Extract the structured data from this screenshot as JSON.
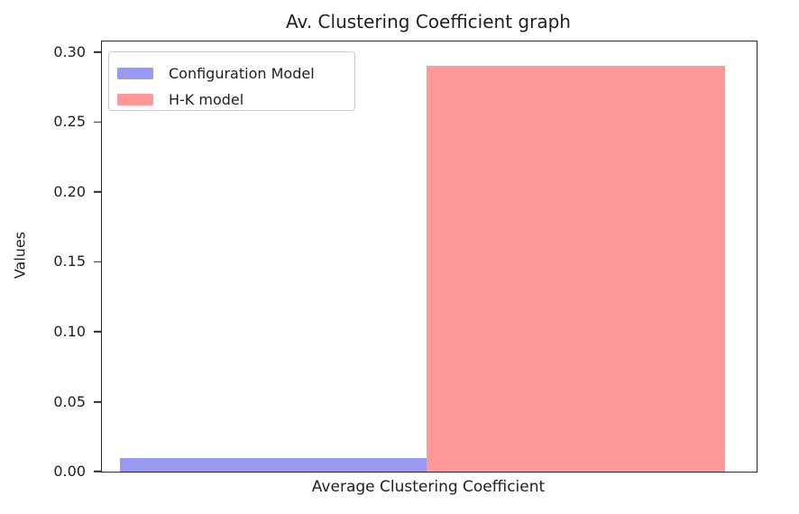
{
  "figure": {
    "background": "#ffffff",
    "spine_color": "#2a2a2a",
    "text_color": "#1f1f1f"
  },
  "chart_data": {
    "type": "bar",
    "title": "Av. Clustering Coefficient graph",
    "xlabel": "Average Clustering Coefficient",
    "ylabel": "Values",
    "categories": [
      "Average Clustering Coefficient"
    ],
    "series": [
      {
        "name": "Configuration Model",
        "values": [
          0.01
        ],
        "color": "#9999f1"
      },
      {
        "name": "H-K model",
        "values": [
          0.29
        ],
        "color": "#ff9898"
      }
    ],
    "ylim": [
      0,
      0.3077
    ],
    "yticks": [
      0.0,
      0.05,
      0.1,
      0.15,
      0.2,
      0.25,
      0.3
    ],
    "ytick_labels": [
      "0.00",
      "0.05",
      "0.10",
      "0.15",
      "0.20",
      "0.25",
      "0.30"
    ],
    "xtick_labels": [],
    "grid": false,
    "legend_position": "upper-left",
    "bar_layout": [
      {
        "left_frac": 0.0275,
        "width_frac": 0.4683
      },
      {
        "left_frac": 0.4959,
        "width_frac": 0.4559
      }
    ]
  }
}
